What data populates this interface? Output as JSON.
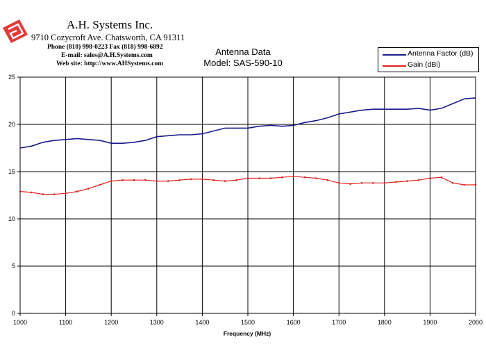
{
  "company": {
    "name": "A.H. Systems Inc.",
    "address": "9710 Cozycroft Ave. Chatsworth, CA 91311",
    "phone": "Phone (818) 998-0223 Fax (818) 998-6892",
    "email": "E-mail:  sales@A.H.Systems.com",
    "website": "Web site:  http://www.AHSystems.com"
  },
  "chart_data": {
    "type": "line",
    "title": "Antenna Data",
    "subtitle": "Model: SAS-590-10",
    "xlabel": "Frequency (MHz)",
    "ylabel": "",
    "xlim": [
      1000,
      2000
    ],
    "ylim": [
      0,
      25
    ],
    "x_ticks": [
      "1000",
      "1100",
      "1200",
      "1300",
      "1400",
      "1500",
      "1600",
      "1700",
      "1800",
      "1900",
      "2000"
    ],
    "y_ticks": [
      "0",
      "5",
      "10",
      "15",
      "20",
      "25"
    ],
    "grid": true,
    "legend_position": "top-right",
    "x": [
      1000,
      1025,
      1050,
      1075,
      1100,
      1125,
      1150,
      1175,
      1200,
      1225,
      1250,
      1275,
      1300,
      1325,
      1350,
      1375,
      1400,
      1425,
      1450,
      1475,
      1500,
      1525,
      1550,
      1575,
      1600,
      1625,
      1650,
      1675,
      1700,
      1725,
      1750,
      1775,
      1800,
      1825,
      1850,
      1875,
      1900,
      1925,
      1950,
      1975,
      2000
    ],
    "series": [
      {
        "name": "Antenna Factor (dB)",
        "color": "#1a1a8c",
        "marker": "none",
        "values": [
          17.5,
          17.7,
          18.1,
          18.3,
          18.4,
          18.5,
          18.4,
          18.3,
          18.0,
          18.0,
          18.1,
          18.3,
          18.7,
          18.8,
          18.9,
          18.9,
          19.0,
          19.3,
          19.6,
          19.6,
          19.6,
          19.8,
          19.9,
          19.8,
          19.9,
          20.2,
          20.4,
          20.7,
          21.1,
          21.3,
          21.5,
          21.6,
          21.6,
          21.6,
          21.6,
          21.7,
          21.5,
          21.7,
          22.2,
          22.7,
          22.8
        ]
      },
      {
        "name": "Gain (dBi)",
        "color": "#e02020",
        "marker": "dot",
        "values": [
          12.9,
          12.8,
          12.6,
          12.6,
          12.7,
          12.9,
          13.2,
          13.6,
          14.0,
          14.1,
          14.1,
          14.1,
          14.0,
          14.0,
          14.1,
          14.2,
          14.2,
          14.1,
          14.0,
          14.1,
          14.3,
          14.3,
          14.3,
          14.4,
          14.5,
          14.4,
          14.3,
          14.1,
          13.8,
          13.7,
          13.8,
          13.8,
          13.8,
          13.9,
          14.0,
          14.1,
          14.3,
          14.4,
          13.8,
          13.6,
          13.6
        ]
      }
    ]
  }
}
